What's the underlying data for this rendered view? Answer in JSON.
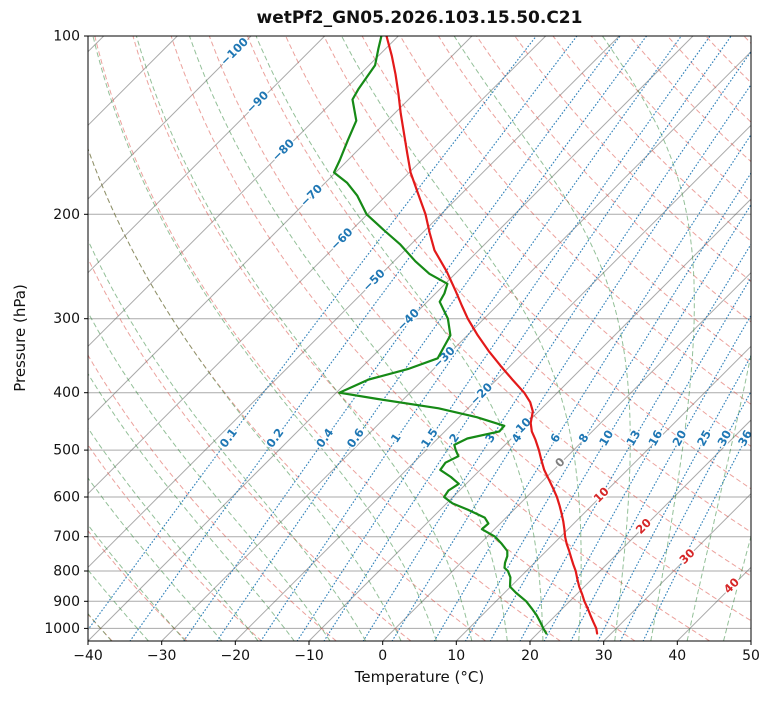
{
  "figure": {
    "title": "wetPf2_GN05.2026.103.15.50.C21",
    "x_axis_label": "Temperature (°C)",
    "y_axis_label": "Pressure (hPa)"
  },
  "chart_data": {
    "type": "line",
    "chart_kind": "skew-t log-p atmospheric sounding",
    "title": "wetPf2_GN05.2026.103.15.50.C21",
    "xlabel": "Temperature (°C)",
    "ylabel": "Pressure (hPa)",
    "grid": true,
    "skew_deg": 45,
    "x_axis": {
      "min": -40,
      "max": 50,
      "unit": "°C",
      "ticks": [
        -40,
        -30,
        -20,
        -10,
        0,
        10,
        20,
        30,
        40,
        50
      ]
    },
    "y_axis": {
      "scale": "log",
      "unit": "hPa",
      "top_pressure": 100,
      "bottom_pressure": 1050,
      "ticks": [
        100,
        200,
        300,
        400,
        500,
        600,
        700,
        800,
        900,
        1000
      ]
    },
    "isotherms": {
      "min": -160,
      "max": 50,
      "step": 10,
      "label_values": [
        -100,
        -90,
        -80,
        -70,
        -60,
        -50,
        -40,
        -30,
        -20,
        -10,
        0,
        10,
        20,
        30,
        40
      ],
      "label_theta_ref_K": 328.15
    },
    "dry_adiabats": {
      "theta_min_C": -40,
      "theta_max_C": 200,
      "step_C": 10
    },
    "moist_adiabats": {
      "theta_w_min_C": -40,
      "theta_w_max_C": 50,
      "step_C": 5
    },
    "mixing_ratio_lines": {
      "values_g_kg": [
        0.1,
        0.2,
        0.4,
        0.6,
        1,
        1.5,
        2,
        3,
        4,
        6,
        8,
        10,
        13,
        16,
        20,
        25,
        30,
        36
      ],
      "label_pressure_hPa": 478
    },
    "series": [
      {
        "name": "temperature",
        "color": "#e31a1a",
        "points": [
          [
            100,
            -81.6
          ],
          [
            108,
            -78.2
          ],
          [
            116,
            -75.2
          ],
          [
            125,
            -72.2
          ],
          [
            135,
            -69.2
          ],
          [
            145,
            -66.3
          ],
          [
            158,
            -62.8
          ],
          [
            170,
            -59.8
          ],
          [
            185,
            -55.8
          ],
          [
            200,
            -52.1
          ],
          [
            215,
            -49.0
          ],
          [
            230,
            -46.0
          ],
          [
            250,
            -41.4
          ],
          [
            270,
            -37.5
          ],
          [
            285,
            -34.8
          ],
          [
            300,
            -32.2
          ],
          [
            320,
            -28.6
          ],
          [
            340,
            -25.0
          ],
          [
            360,
            -21.4
          ],
          [
            380,
            -17.9
          ],
          [
            400,
            -14.5
          ],
          [
            415,
            -12.4
          ],
          [
            430,
            -10.8
          ],
          [
            450,
            -9.5
          ],
          [
            465,
            -8.2
          ],
          [
            480,
            -6.6
          ],
          [
            500,
            -4.7
          ],
          [
            520,
            -3.0
          ],
          [
            540,
            -1.3
          ],
          [
            560,
            0.6
          ],
          [
            580,
            2.4
          ],
          [
            600,
            4.1
          ],
          [
            620,
            5.6
          ],
          [
            640,
            7.0
          ],
          [
            660,
            8.3
          ],
          [
            680,
            9.5
          ],
          [
            700,
            10.6
          ],
          [
            720,
            11.8
          ],
          [
            740,
            13.1
          ],
          [
            760,
            14.3
          ],
          [
            780,
            15.5
          ],
          [
            800,
            16.7
          ],
          [
            825,
            18.0
          ],
          [
            850,
            19.3
          ],
          [
            875,
            20.7
          ],
          [
            900,
            22.0
          ],
          [
            925,
            23.4
          ],
          [
            950,
            24.7
          ],
          [
            975,
            26.0
          ],
          [
            1000,
            27.3
          ],
          [
            1020,
            28.1
          ]
        ]
      },
      {
        "name": "dewpoint",
        "color": "#168a16",
        "points": [
          [
            100,
            -82.3
          ],
          [
            105,
            -81.0
          ],
          [
            112,
            -79.2
          ],
          [
            123,
            -78.2
          ],
          [
            128,
            -77.6
          ],
          [
            139,
            -74.2
          ],
          [
            150,
            -72.7
          ],
          [
            162,
            -71.1
          ],
          [
            170,
            -70.2
          ],
          [
            177,
            -67.0
          ],
          [
            186,
            -63.9
          ],
          [
            200,
            -60.1
          ],
          [
            213,
            -55.5
          ],
          [
            225,
            -51.4
          ],
          [
            240,
            -47.1
          ],
          [
            252,
            -43.5
          ],
          [
            262,
            -39.7
          ],
          [
            272,
            -38.8
          ],
          [
            281,
            -38.3
          ],
          [
            300,
            -34.9
          ],
          [
            320,
            -32.3
          ],
          [
            335,
            -31.6
          ],
          [
            350,
            -30.9
          ],
          [
            365,
            -33.5
          ],
          [
            380,
            -37.4
          ],
          [
            400,
            -39.6
          ],
          [
            410,
            -33.5
          ],
          [
            425,
            -24.0
          ],
          [
            440,
            -17.6
          ],
          [
            455,
            -12.7
          ],
          [
            465,
            -12.6
          ],
          [
            478,
            -16.0
          ],
          [
            490,
            -16.9
          ],
          [
            500,
            -16.0
          ],
          [
            512,
            -14.8
          ],
          [
            525,
            -15.7
          ],
          [
            540,
            -15.4
          ],
          [
            555,
            -13.0
          ],
          [
            570,
            -11.0
          ],
          [
            585,
            -11.5
          ],
          [
            600,
            -11.2
          ],
          [
            615,
            -9.2
          ],
          [
            630,
            -6.3
          ],
          [
            650,
            -2.9
          ],
          [
            665,
            -1.6
          ],
          [
            680,
            -1.7
          ],
          [
            700,
            1.1
          ],
          [
            720,
            3.0
          ],
          [
            740,
            4.7
          ],
          [
            755,
            5.4
          ],
          [
            775,
            6.0
          ],
          [
            790,
            6.6
          ],
          [
            800,
            7.5
          ],
          [
            820,
            8.7
          ],
          [
            850,
            9.9
          ],
          [
            870,
            11.5
          ],
          [
            900,
            14.1
          ],
          [
            925,
            15.8
          ],
          [
            950,
            17.4
          ],
          [
            975,
            18.8
          ],
          [
            1000,
            20.1
          ],
          [
            1020,
            21.2
          ]
        ]
      }
    ],
    "colors": {
      "isotherm": "rgba(85,85,85,0.5)",
      "pressure_grid": "rgba(85,85,85,0.5)",
      "dry_adiabat": "rgba(217,70,60,0.5)",
      "moist_adiabat": "rgba(40,130,50,0.5)",
      "mixing_ratio": "rgba(31,119,180,0.9)",
      "isotherm_label_negative": "#1f77b4",
      "isotherm_label_zero": "#808080",
      "isotherm_label_positive": "#d62728",
      "mixing_label": "#1f77b4",
      "axis_text": "#111111",
      "spine": "#000000"
    }
  }
}
